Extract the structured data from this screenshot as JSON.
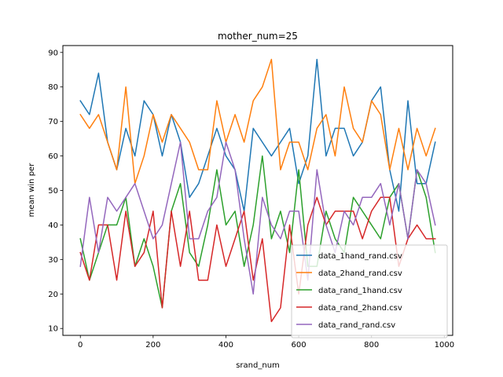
{
  "chart_data": {
    "type": "line",
    "title": "mother_num=25",
    "xlabel": "srand_num",
    "ylabel": "mean win per",
    "xlim": [
      -48,
      1023
    ],
    "ylim": [
      8,
      92
    ],
    "xticks": [
      0,
      200,
      400,
      600,
      800,
      1000
    ],
    "yticks": [
      10,
      20,
      30,
      40,
      50,
      60,
      70,
      80,
      90
    ],
    "grid": false,
    "legend_position": "lower-right",
    "x": [
      0,
      25,
      50,
      75,
      100,
      125,
      150,
      175,
      200,
      225,
      250,
      275,
      300,
      325,
      350,
      375,
      400,
      425,
      450,
      475,
      500,
      525,
      550,
      575,
      600,
      625,
      650,
      675,
      700,
      725,
      750,
      775,
      800,
      825,
      850,
      875,
      900,
      925,
      950,
      975
    ],
    "series": [
      {
        "name": "data_1hand_rand.csv",
        "color": "#1f77b4",
        "values": [
          76,
          72,
          84,
          64,
          56,
          68,
          60,
          76,
          72,
          60,
          72,
          64,
          48,
          52,
          60,
          68,
          60,
          56,
          44,
          68,
          64,
          60,
          64,
          68,
          52,
          60,
          88,
          60,
          68,
          68,
          60,
          64,
          76,
          80,
          56,
          44,
          76,
          52,
          52,
          64
        ]
      },
      {
        "name": "data_2hand_rand.csv",
        "color": "#ff7f0e",
        "values": [
          72,
          68,
          72,
          64,
          56,
          80,
          52,
          60,
          72,
          64,
          72,
          68,
          64,
          56,
          56,
          76,
          64,
          72,
          64,
          76,
          80,
          88,
          56,
          64,
          64,
          56,
          68,
          72,
          60,
          80,
          68,
          64,
          76,
          72,
          56,
          68,
          56,
          68,
          60,
          68
        ]
      },
      {
        "name": "data_rand_1hand.csv",
        "color": "#2ca02c",
        "values": [
          36,
          24,
          32,
          40,
          40,
          48,
          28,
          36,
          28,
          16,
          44,
          52,
          32,
          28,
          40,
          56,
          40,
          44,
          28,
          40,
          60,
          36,
          44,
          32,
          56,
          28,
          28,
          44,
          36,
          32,
          48,
          44,
          40,
          36,
          48,
          52,
          36,
          56,
          48,
          32
        ]
      },
      {
        "name": "data_rand_2hand.csv",
        "color": "#d62728",
        "values": [
          32,
          24,
          40,
          40,
          24,
          44,
          28,
          32,
          44,
          16,
          44,
          28,
          44,
          24,
          24,
          40,
          28,
          36,
          44,
          24,
          36,
          12,
          16,
          40,
          20,
          40,
          48,
          40,
          44,
          44,
          44,
          36,
          44,
          48,
          48,
          28,
          36,
          40,
          36,
          36
        ]
      },
      {
        "name": "data_rand_rand.csv",
        "color": "#9467bd",
        "values": [
          28,
          48,
          32,
          48,
          44,
          48,
          52,
          44,
          36,
          40,
          52,
          64,
          36,
          36,
          44,
          48,
          64,
          56,
          36,
          20,
          48,
          40,
          36,
          44,
          44,
          24,
          56,
          40,
          32,
          44,
          40,
          48,
          48,
          52,
          40,
          52,
          36,
          56,
          52,
          40
        ]
      }
    ]
  }
}
